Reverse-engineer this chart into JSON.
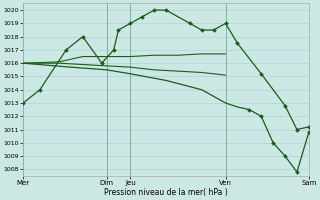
{
  "background_color": "#cce8e4",
  "grid_color": "#aacccc",
  "line_color": "#1a5c1a",
  "figsize": [
    3.2,
    2.0
  ],
  "dpi": 100,
  "xlim": [
    0,
    12
  ],
  "ylim": [
    1007.5,
    1020.5
  ],
  "y_ticks": [
    1008,
    1009,
    1010,
    1011,
    1012,
    1013,
    1014,
    1015,
    1016,
    1017,
    1018,
    1019,
    1020
  ],
  "x_tick_positions": [
    0,
    3.5,
    4.5,
    8.5,
    12
  ],
  "x_tick_labels": [
    "Mer",
    "Dim",
    "Jeu",
    "Ven",
    "Sam"
  ],
  "x_vlines": [
    0,
    3.5,
    4.5,
    8.5,
    12
  ],
  "xlabel": "Pression niveau de la mer( hPa )",
  "lines": [
    {
      "x": [
        0,
        0.7,
        1.8,
        2.5,
        3.3,
        3.8,
        4.0,
        4.5,
        5.0,
        5.5,
        6.0,
        7.0,
        7.5,
        8.0,
        8.5,
        9.0,
        10.0,
        11.0,
        11.5,
        12.0
      ],
      "y": [
        1013,
        1014,
        1017,
        1018,
        1016,
        1017,
        1018.5,
        1019,
        1019.5,
        1020,
        1020,
        1019,
        1018.5,
        1018.5,
        1019,
        1017.5,
        1015.2,
        1012.8,
        1011,
        1011.2
      ],
      "marker": "D",
      "markersize": 2.0,
      "linewidth": 0.9,
      "markevery": null
    },
    {
      "x": [
        0,
        1.5,
        2.5,
        3.5,
        4.5,
        5.5,
        6.5,
        7.5,
        8.5
      ],
      "y": [
        1016,
        1016.1,
        1016.5,
        1016.5,
        1016.5,
        1016.6,
        1016.6,
        1016.7,
        1016.7
      ],
      "marker": null,
      "markersize": 0,
      "linewidth": 0.8,
      "markevery": null
    },
    {
      "x": [
        0,
        1.5,
        2.5,
        3.5,
        4.5,
        5.5,
        6.5,
        7.5,
        8.5
      ],
      "y": [
        1016,
        1016.0,
        1015.9,
        1015.8,
        1015.7,
        1015.5,
        1015.4,
        1015.3,
        1015.1
      ],
      "marker": null,
      "markersize": 0,
      "linewidth": 0.8,
      "markevery": null
    },
    {
      "x": [
        0,
        2.0,
        3.5,
        4.5,
        6.0,
        7.5,
        8.5,
        9.0,
        9.5,
        10.0,
        10.5,
        11.0,
        11.5,
        12.0
      ],
      "y": [
        1016.0,
        1015.7,
        1015.5,
        1015.2,
        1014.7,
        1014.0,
        1013.0,
        1012.7,
        1012.5,
        1012.0,
        1010.0,
        1009.0,
        1007.8,
        1010.8
      ],
      "marker": "D",
      "markersize": 2.0,
      "linewidth": 0.9,
      "markevery": [
        8,
        9,
        10,
        11,
        12,
        13
      ]
    }
  ]
}
